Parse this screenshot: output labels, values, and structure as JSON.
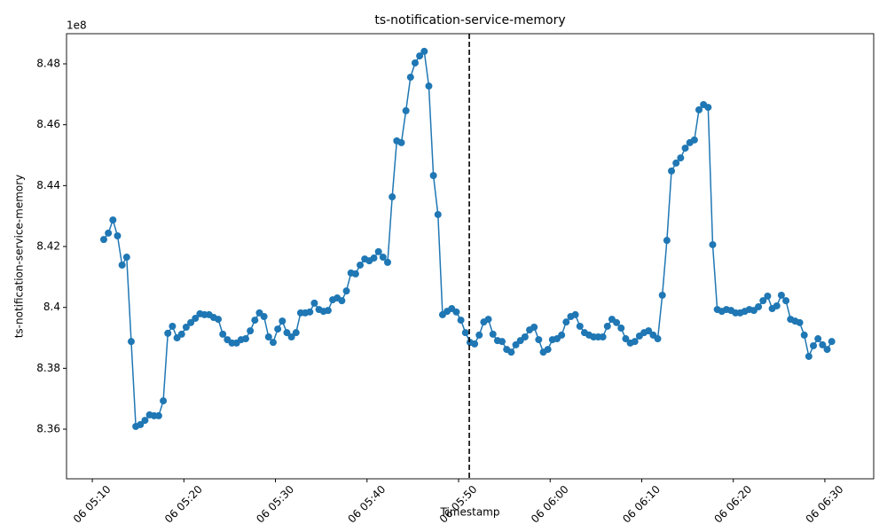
{
  "chart_data": {
    "type": "line",
    "title": "ts-notification-service-memory",
    "x_label": "Timestamp",
    "y_label": "ts-notification-service-memory",
    "y_offset_label": "1e8",
    "color": "#1f77b4",
    "x": [
      "06 05:11:15",
      "06 05:11:45",
      "06 05:12:15",
      "06 05:12:45",
      "06 05:13:15",
      "06 05:13:45",
      "06 05:14:15",
      "06 05:14:45",
      "06 05:15:15",
      "06 05:15:45",
      "06 05:16:15",
      "06 05:16:45",
      "06 05:17:15",
      "06 05:17:45",
      "06 05:18:15",
      "06 05:18:45",
      "06 05:19:15",
      "06 05:19:45",
      "06 05:20:15",
      "06 05:20:45",
      "06 05:21:15",
      "06 05:21:45",
      "06 05:22:15",
      "06 05:22:45",
      "06 05:23:15",
      "06 05:23:45",
      "06 05:24:15",
      "06 05:24:45",
      "06 05:25:15",
      "06 05:25:45",
      "06 05:26:15",
      "06 05:26:45",
      "06 05:27:15",
      "06 05:27:45",
      "06 05:28:15",
      "06 05:28:45",
      "06 05:29:15",
      "06 05:29:45",
      "06 05:30:15",
      "06 05:30:45",
      "06 05:31:15",
      "06 05:31:45",
      "06 05:32:15",
      "06 05:32:45",
      "06 05:33:15",
      "06 05:33:45",
      "06 05:34:15",
      "06 05:34:45",
      "06 05:35:15",
      "06 05:35:45",
      "06 05:36:15",
      "06 05:36:45",
      "06 05:37:15",
      "06 05:37:45",
      "06 05:38:15",
      "06 05:38:45",
      "06 05:39:15",
      "06 05:39:45",
      "06 05:40:15",
      "06 05:40:45",
      "06 05:41:15",
      "06 05:41:45",
      "06 05:42:15",
      "06 05:42:45",
      "06 05:43:15",
      "06 05:43:45",
      "06 05:44:15",
      "06 05:44:45",
      "06 05:45:15",
      "06 05:45:45",
      "06 05:46:15",
      "06 05:46:45",
      "06 05:47:15",
      "06 05:47:45",
      "06 05:48:15",
      "06 05:48:45",
      "06 05:49:15",
      "06 05:49:45",
      "06 05:50:15",
      "06 05:50:45",
      "06 05:51:15",
      "06 05:51:45",
      "06 05:52:15",
      "06 05:52:45",
      "06 05:53:15",
      "06 05:53:45",
      "06 05:54:15",
      "06 05:54:45",
      "06 05:55:15",
      "06 05:55:45",
      "06 05:56:15",
      "06 05:56:45",
      "06 05:57:15",
      "06 05:57:45",
      "06 05:58:15",
      "06 05:58:45",
      "06 05:59:15",
      "06 05:59:45",
      "06 06:00:15",
      "06 06:00:45",
      "06 06:01:15",
      "06 06:01:45",
      "06 06:02:15",
      "06 06:02:45",
      "06 06:03:15",
      "06 06:03:45",
      "06 06:04:15",
      "06 06:04:45",
      "06 06:05:15",
      "06 06:05:45",
      "06 06:06:15",
      "06 06:06:45",
      "06 06:07:15",
      "06 06:07:45",
      "06 06:08:15",
      "06 06:08:45",
      "06 06:09:15",
      "06 06:09:45",
      "06 06:10:15",
      "06 06:10:45",
      "06 06:11:15",
      "06 06:11:45",
      "06 06:12:15",
      "06 06:12:45",
      "06 06:13:15",
      "06 06:13:45",
      "06 06:14:15",
      "06 06:14:45",
      "06 06:15:15",
      "06 06:15:45",
      "06 06:16:15",
      "06 06:16:45",
      "06 06:17:15",
      "06 06:17:45",
      "06 06:18:15",
      "06 06:18:45",
      "06 06:19:15",
      "06 06:19:45",
      "06 06:20:15",
      "06 06:20:45",
      "06 06:21:15",
      "06 06:21:45",
      "06 06:22:15",
      "06 06:22:45",
      "06 06:23:15",
      "06 06:23:45",
      "06 06:24:15",
      "06 06:24:45",
      "06 06:25:15",
      "06 06:25:45",
      "06 06:26:15",
      "06 06:26:45",
      "06 06:27:15",
      "06 06:27:45",
      "06 06:28:15",
      "06 06:28:45",
      "06 06:29:15",
      "06 06:29:45",
      "06 06:30:15",
      "06 06:30:45"
    ],
    "values": [
      8.4223,
      8.4244,
      8.4287,
      8.4235,
      8.4139,
      8.4165,
      8.3888,
      8.3609,
      8.3615,
      8.3629,
      8.3647,
      8.3644,
      8.3644,
      8.3693,
      8.3915,
      8.3938,
      8.39,
      8.3912,
      8.3935,
      8.395,
      8.3964,
      8.3979,
      8.3976,
      8.3976,
      8.3967,
      8.3961,
      8.3912,
      8.3894,
      8.3883,
      8.3883,
      8.3894,
      8.3897,
      8.3923,
      8.3958,
      8.3982,
      8.397,
      8.3903,
      8.3885,
      8.3929,
      8.3955,
      8.3917,
      8.3903,
      8.3917,
      8.3982,
      8.3982,
      8.3985,
      8.4014,
      8.3993,
      8.3987,
      8.399,
      8.4025,
      8.4031,
      8.4022,
      8.4054,
      8.4113,
      8.411,
      8.4139,
      8.4159,
      8.4153,
      8.4162,
      8.4183,
      8.4165,
      8.4148,
      8.4363,
      8.4547,
      8.4541,
      8.4646,
      8.4756,
      8.4803,
      8.4826,
      8.4841,
      8.4727,
      8.4433,
      8.4305,
      8.3976,
      8.3987,
      8.3996,
      8.3985,
      8.3958,
      8.3917,
      8.3885,
      8.388,
      8.3909,
      8.3952,
      8.3961,
      8.3912,
      8.3891,
      8.3888,
      8.3862,
      8.3853,
      8.3877,
      8.3891,
      8.3903,
      8.3926,
      8.3935,
      8.3894,
      8.3853,
      8.3862,
      8.3894,
      8.3897,
      8.3909,
      8.3952,
      8.397,
      8.3976,
      8.3938,
      8.3917,
      8.3909,
      8.3903,
      8.3903,
      8.3903,
      8.3938,
      8.3961,
      8.395,
      8.3932,
      8.3897,
      8.3883,
      8.3888,
      8.3906,
      8.3917,
      8.3923,
      8.3909,
      8.3897,
      8.404,
      8.422,
      8.4448,
      8.4474,
      8.4491,
      8.4523,
      8.4541,
      8.455,
      8.4649,
      8.4666,
      8.4657,
      8.4206,
      8.3993,
      8.3987,
      8.3993,
      8.399,
      8.3982,
      8.3982,
      8.3987,
      8.3993,
      8.399,
      8.4002,
      8.4022,
      8.4037,
      8.3996,
      8.4005,
      8.404,
      8.4022,
      8.3961,
      8.3955,
      8.395,
      8.3909,
      8.3839,
      8.3874,
      8.3897,
      8.3877,
      8.3862,
      8.3888
    ],
    "xlim": [
      "06 05:07:11",
      "06 06:35:20"
    ],
    "xticks": [
      {
        "value": "06 05:10:00",
        "label": "06 05:10"
      },
      {
        "value": "06 05:20:00",
        "label": "06 05:20"
      },
      {
        "value": "06 05:30:00",
        "label": "06 05:30"
      },
      {
        "value": "06 05:40:00",
        "label": "06 05:40"
      },
      {
        "value": "06 05:50:00",
        "label": "06 05:50"
      },
      {
        "value": "06 06:00:00",
        "label": "06 06:00"
      },
      {
        "value": "06 06:10:00",
        "label": "06 06:10"
      },
      {
        "value": "06 06:20:00",
        "label": "06 06:20"
      },
      {
        "value": "06 06:30:00",
        "label": "06 06:30"
      }
    ],
    "ylim": [
      8.3437,
      8.4899
    ],
    "yticks": [
      8.36,
      8.38,
      8.4,
      8.42,
      8.44,
      8.46,
      8.48
    ],
    "vline_x": "06 05:51:10",
    "grid": false
  }
}
